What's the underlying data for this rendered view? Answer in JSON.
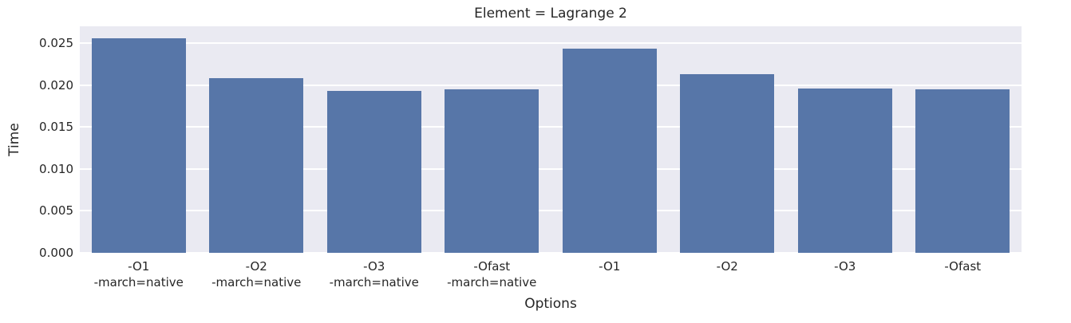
{
  "chart_data": {
    "type": "bar",
    "title": "Element = Lagrange 2",
    "xlabel": "Options",
    "ylabel": "Time",
    "categories": [
      "-O1\n-march=native",
      "-O2\n-march=native",
      "-O3\n-march=native",
      "-Ofast\n-march=native",
      "-O1",
      "-O2",
      "-O3",
      "-Ofast"
    ],
    "values": [
      0.0256,
      0.0208,
      0.0193,
      0.0195,
      0.0243,
      0.0213,
      0.0196,
      0.0195
    ],
    "yticks": [
      0,
      0.005,
      0.01,
      0.015,
      0.02,
      0.025
    ],
    "ytick_labels": [
      "0.000",
      "0.005",
      "0.010",
      "0.015",
      "0.020",
      "0.025"
    ],
    "ylim": [
      0,
      0.027
    ],
    "grid": true,
    "legend": null,
    "colors": {
      "bar": "#5776A8",
      "plot_background": "#EAEAF2",
      "gridline": "#FFFFFF",
      "text": "#262626",
      "figure_background": "#FFFFFF"
    }
  }
}
